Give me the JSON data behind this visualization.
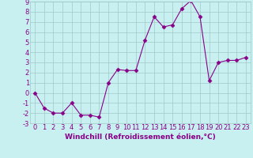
{
  "x": [
    0,
    1,
    2,
    3,
    4,
    5,
    6,
    7,
    8,
    9,
    10,
    11,
    12,
    13,
    14,
    15,
    16,
    17,
    18,
    19,
    20,
    21,
    22,
    23
  ],
  "y": [
    0,
    -1.5,
    -2,
    -2,
    -1,
    -2.2,
    -2.2,
    -2.4,
    1.0,
    2.3,
    2.2,
    2.2,
    5.2,
    7.5,
    6.5,
    6.7,
    8.3,
    9.1,
    7.5,
    1.2,
    3.0,
    3.2,
    3.2,
    3.5
  ],
  "line_color": "#880088",
  "marker": "D",
  "marker_size": 2.5,
  "background_color": "#c8f0f0",
  "grid_color": "#a0c8c8",
  "xlabel": "Windchill (Refroidissement éolien,°C)",
  "xlabel_fontsize": 6.5,
  "tick_fontsize": 6.0,
  "ylim": [
    -3,
    9
  ],
  "xlim": [
    -0.5,
    23.5
  ],
  "yticks": [
    -3,
    -2,
    -1,
    0,
    1,
    2,
    3,
    4,
    5,
    6,
    7,
    8,
    9
  ],
  "xticks": [
    0,
    1,
    2,
    3,
    4,
    5,
    6,
    7,
    8,
    9,
    10,
    11,
    12,
    13,
    14,
    15,
    16,
    17,
    18,
    19,
    20,
    21,
    22,
    23
  ]
}
